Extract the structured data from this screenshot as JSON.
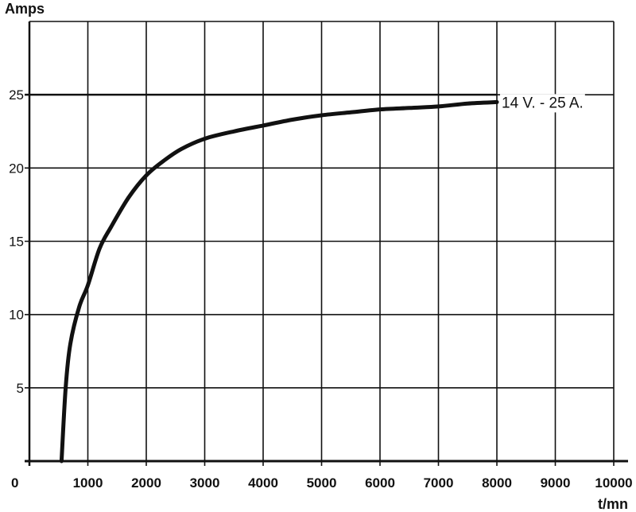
{
  "chart_data": {
    "type": "line",
    "title": "",
    "xlabel": "t/mn",
    "ylabel": "Amps",
    "xlim": [
      0,
      10000
    ],
    "ylim": [
      0,
      30
    ],
    "grid": true,
    "x_ticks": [
      "1000",
      "2000",
      "3000",
      "4000",
      "5000",
      "6000",
      "7000",
      "8000",
      "9000",
      "10000"
    ],
    "y_ticks": [
      "5",
      "10",
      "15",
      "20",
      "25"
    ],
    "origin_label": "0",
    "annotation": "14 V. - 25 A.",
    "series": [
      {
        "x": [
          550,
          620,
          700,
          850,
          1000,
          1200,
          1400,
          1700,
          2000,
          2300,
          2600,
          3000,
          3500,
          4000,
          4500,
          5000,
          5500,
          6000,
          6500,
          7000,
          7500,
          8000
        ],
        "y": [
          0,
          5,
          8,
          10.5,
          12,
          14.5,
          16,
          18,
          19.5,
          20.5,
          21.3,
          22,
          22.5,
          22.9,
          23.3,
          23.6,
          23.8,
          24,
          24.1,
          24.2,
          24.4,
          24.5
        ]
      }
    ],
    "reference_line": {
      "y": 25,
      "x_end": 8000
    },
    "colors": {
      "line": "#111111",
      "grid": "#111111"
    }
  }
}
